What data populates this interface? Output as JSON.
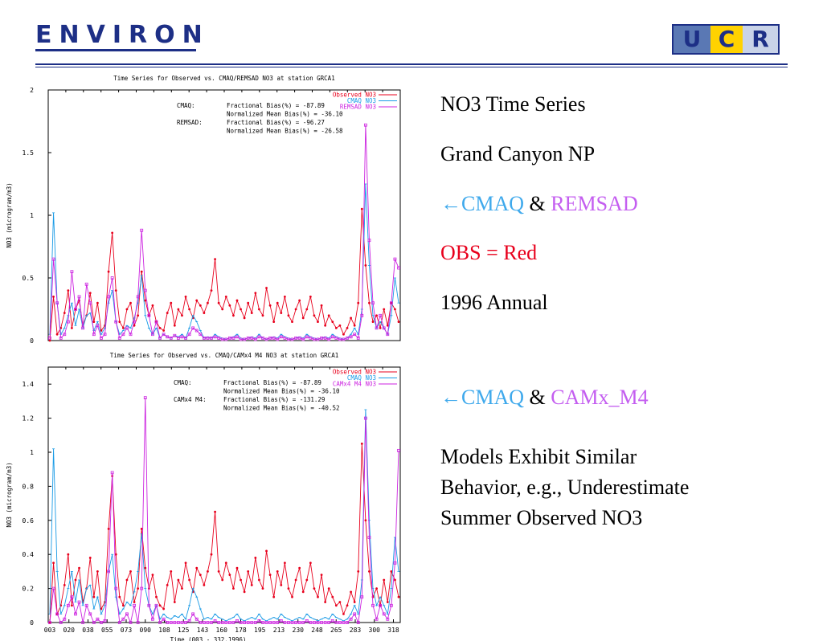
{
  "header": {
    "left_logo": "ENVIRON",
    "right_logo": [
      "U",
      "C",
      "R"
    ]
  },
  "bullets": {
    "line1": "NO3 Time Series",
    "line2": "Grand Canyon NP",
    "line3_arrow": "←",
    "line3_a": "CMAQ",
    "line3_amp": " & ",
    "line3_b": "REMSAD",
    "line4": "OBS = Red",
    "line5": "1996 Annual",
    "line6_arrow": "←",
    "line6_a": "CMAQ",
    "line6_amp": " & ",
    "line6_b": "CAMx_M4",
    "paragraph": [
      "Models Exhibit Similar",
      "Behavior, e.g., Underestimate",
      "Summer Observed NO3"
    ]
  },
  "colors": {
    "obs": "#e8001c",
    "cmaq": "#1a9be6",
    "model2": "#cc22e0",
    "text_cyan": "#3fa9ec",
    "text_magenta": "#c45ef0"
  },
  "chart_data": [
    {
      "type": "line",
      "title": "Time Series for Observed vs. CMAQ/REMSAD NO3 at station GRCA1",
      "ylabel": "NO3  (microgram/m3)",
      "ylim": [
        0,
        2.0
      ],
      "yticks": [
        "0",
        "0.5",
        "1",
        "1.5",
        "2"
      ],
      "legend": [
        "Observed NO3",
        "CMAQ NO3",
        "REMSAD NO3"
      ],
      "stats": [
        [
          "CMAQ:",
          "Fractional Bias(%) = -87.89"
        ],
        [
          "",
          "Normalized Mean Bias(%) = -36.10"
        ],
        [
          "REMSAD:",
          "Fractional Bias(%) = -96.27"
        ],
        [
          "",
          "Normalized Mean Bias(%) = -26.58"
        ]
      ],
      "series": [
        {
          "name": "Observed NO3",
          "values": [
            0.0,
            0.35,
            0.05,
            0.1,
            0.22,
            0.4,
            0.1,
            0.25,
            0.32,
            0.12,
            0.2,
            0.38,
            0.15,
            0.3,
            0.08,
            0.12,
            0.55,
            0.86,
            0.4,
            0.15,
            0.1,
            0.25,
            0.3,
            0.12,
            0.2,
            0.55,
            0.32,
            0.2,
            0.28,
            0.15,
            0.1,
            0.08,
            0.22,
            0.3,
            0.12,
            0.25,
            0.2,
            0.35,
            0.25,
            0.18,
            0.32,
            0.28,
            0.22,
            0.3,
            0.4,
            0.65,
            0.3,
            0.25,
            0.35,
            0.28,
            0.2,
            0.32,
            0.25,
            0.18,
            0.3,
            0.22,
            0.38,
            0.25,
            0.2,
            0.42,
            0.28,
            0.15,
            0.3,
            0.22,
            0.35,
            0.2,
            0.15,
            0.25,
            0.32,
            0.18,
            0.25,
            0.35,
            0.2,
            0.15,
            0.28,
            0.12,
            0.2,
            0.15,
            0.1,
            0.12,
            0.05,
            0.1,
            0.18,
            0.12,
            0.3,
            1.05,
            0.6,
            0.3,
            0.15,
            0.2,
            0.1,
            0.25,
            0.12,
            0.3,
            0.25,
            0.15
          ]
        },
        {
          "name": "CMAQ NO3",
          "values": [
            0.05,
            1.02,
            0.3,
            0.05,
            0.1,
            0.2,
            0.3,
            0.12,
            0.25,
            0.1,
            0.2,
            0.22,
            0.08,
            0.15,
            0.05,
            0.1,
            0.3,
            0.4,
            0.15,
            0.05,
            0.08,
            0.12,
            0.1,
            0.18,
            0.3,
            0.52,
            0.2,
            0.1,
            0.05,
            0.1,
            0.02,
            0.05,
            0.03,
            0.02,
            0.04,
            0.03,
            0.05,
            0.02,
            0.1,
            0.2,
            0.15,
            0.08,
            0.02,
            0.03,
            0.02,
            0.05,
            0.03,
            0.02,
            0.01,
            0.02,
            0.03,
            0.05,
            0.02,
            0.01,
            0.02,
            0.03,
            0.02,
            0.05,
            0.02,
            0.01,
            0.02,
            0.03,
            0.02,
            0.05,
            0.03,
            0.02,
            0.01,
            0.02,
            0.03,
            0.02,
            0.05,
            0.03,
            0.02,
            0.01,
            0.02,
            0.03,
            0.02,
            0.05,
            0.03,
            0.02,
            0.01,
            0.02,
            0.05,
            0.1,
            0.05,
            0.25,
            1.25,
            0.6,
            0.2,
            0.1,
            0.15,
            0.1,
            0.05,
            0.2,
            0.5,
            0.3
          ]
        },
        {
          "name": "REMSAD NO3",
          "values": [
            0.02,
            0.65,
            0.3,
            0.02,
            0.05,
            0.15,
            0.55,
            0.25,
            0.35,
            0.1,
            0.45,
            0.3,
            0.05,
            0.12,
            0.02,
            0.05,
            0.35,
            0.5,
            0.15,
            0.02,
            0.05,
            0.1,
            0.05,
            0.15,
            0.35,
            0.88,
            0.4,
            0.2,
            0.05,
            0.15,
            0.02,
            0.05,
            0.03,
            0.02,
            0.04,
            0.02,
            0.03,
            0.02,
            0.05,
            0.1,
            0.08,
            0.05,
            0.02,
            0.02,
            0.02,
            0.03,
            0.02,
            0.01,
            0.01,
            0.02,
            0.02,
            0.03,
            0.01,
            0.01,
            0.02,
            0.02,
            0.01,
            0.03,
            0.02,
            0.01,
            0.02,
            0.02,
            0.01,
            0.03,
            0.02,
            0.01,
            0.01,
            0.02,
            0.02,
            0.01,
            0.03,
            0.02,
            0.01,
            0.01,
            0.02,
            0.02,
            0.01,
            0.03,
            0.02,
            0.01,
            0.01,
            0.02,
            0.03,
            0.05,
            0.02,
            0.2,
            1.72,
            0.8,
            0.3,
            0.1,
            0.2,
            0.1,
            0.05,
            0.3,
            0.65,
            0.58
          ]
        }
      ]
    },
    {
      "type": "line",
      "title": "Time Series for Observed vs. CMAQ/CAMx4 M4 NO3 at station GRCA1",
      "ylabel": "NO3  (microgram/m3)",
      "xlabel": "Time    (003 - 332,1996)",
      "ylim": [
        0,
        1.5
      ],
      "yticks": [
        "0",
        "0.2",
        "0.4",
        "0.6",
        "0.8",
        "1",
        "1.2",
        "1.4"
      ],
      "xticks": [
        "003",
        "020",
        "038",
        "055",
        "073",
        "090",
        "108",
        "125",
        "143",
        "160",
        "178",
        "195",
        "213",
        "230",
        "248",
        "265",
        "283",
        "300",
        "318"
      ],
      "legend": [
        "Observed NO3",
        "CMAQ NO3",
        "CAMx4 M4 NO3"
      ],
      "stats": [
        [
          "CMAQ:",
          "Fractional Bias(%) = -87.89"
        ],
        [
          "",
          "Normalized Mean Bias(%) = -36.10"
        ],
        [
          "CAMx4 M4:",
          "Fractional Bias(%) = -131.29"
        ],
        [
          "",
          "Normalized Mean Bias(%) = -40.52"
        ]
      ],
      "series": [
        {
          "name": "Observed NO3",
          "values": [
            0.0,
            0.35,
            0.05,
            0.1,
            0.22,
            0.4,
            0.1,
            0.25,
            0.32,
            0.12,
            0.2,
            0.38,
            0.15,
            0.3,
            0.08,
            0.12,
            0.55,
            0.86,
            0.4,
            0.15,
            0.1,
            0.25,
            0.3,
            0.12,
            0.2,
            0.55,
            0.32,
            0.2,
            0.28,
            0.15,
            0.1,
            0.08,
            0.22,
            0.3,
            0.12,
            0.25,
            0.2,
            0.35,
            0.25,
            0.18,
            0.32,
            0.28,
            0.22,
            0.3,
            0.4,
            0.65,
            0.3,
            0.25,
            0.35,
            0.28,
            0.2,
            0.32,
            0.25,
            0.18,
            0.3,
            0.22,
            0.38,
            0.25,
            0.2,
            0.42,
            0.28,
            0.15,
            0.3,
            0.22,
            0.35,
            0.2,
            0.15,
            0.25,
            0.32,
            0.18,
            0.25,
            0.35,
            0.2,
            0.15,
            0.28,
            0.12,
            0.2,
            0.15,
            0.1,
            0.12,
            0.05,
            0.1,
            0.18,
            0.12,
            0.3,
            1.05,
            0.6,
            0.3,
            0.15,
            0.2,
            0.1,
            0.25,
            0.12,
            0.3,
            0.25,
            0.15
          ]
        },
        {
          "name": "CMAQ NO3",
          "values": [
            0.05,
            1.02,
            0.3,
            0.05,
            0.1,
            0.2,
            0.3,
            0.12,
            0.25,
            0.1,
            0.2,
            0.22,
            0.08,
            0.15,
            0.05,
            0.1,
            0.3,
            0.4,
            0.15,
            0.05,
            0.08,
            0.12,
            0.1,
            0.18,
            0.3,
            0.52,
            0.2,
            0.1,
            0.05,
            0.1,
            0.02,
            0.05,
            0.03,
            0.02,
            0.04,
            0.03,
            0.05,
            0.02,
            0.1,
            0.2,
            0.15,
            0.08,
            0.02,
            0.03,
            0.02,
            0.05,
            0.03,
            0.02,
            0.01,
            0.02,
            0.03,
            0.05,
            0.02,
            0.01,
            0.02,
            0.03,
            0.02,
            0.05,
            0.02,
            0.01,
            0.02,
            0.03,
            0.02,
            0.05,
            0.03,
            0.02,
            0.01,
            0.02,
            0.03,
            0.02,
            0.05,
            0.03,
            0.02,
            0.01,
            0.02,
            0.03,
            0.02,
            0.05,
            0.03,
            0.02,
            0.01,
            0.02,
            0.05,
            0.1,
            0.05,
            0.25,
            1.25,
            0.6,
            0.2,
            0.1,
            0.15,
            0.1,
            0.05,
            0.2,
            0.5,
            0.3
          ]
        },
        {
          "name": "CAMx4 M4 NO3",
          "values": [
            0.0,
            0.2,
            0.05,
            0.0,
            0.02,
            0.1,
            0.15,
            0.05,
            0.12,
            0.0,
            0.1,
            0.05,
            0.0,
            0.02,
            0.0,
            0.01,
            0.3,
            0.88,
            0.2,
            0.0,
            0.02,
            0.05,
            0.0,
            0.1,
            0.0,
            0.2,
            1.32,
            0.1,
            0.02,
            0.1,
            0.0,
            0.02,
            0.0,
            0.0,
            0.0,
            0.0,
            0.0,
            0.0,
            0.01,
            0.05,
            0.02,
            0.0,
            0.0,
            0.0,
            0.0,
            0.01,
            0.0,
            0.0,
            0.0,
            0.0,
            0.0,
            0.01,
            0.0,
            0.0,
            0.0,
            0.0,
            0.0,
            0.01,
            0.0,
            0.0,
            0.0,
            0.0,
            0.0,
            0.01,
            0.0,
            0.0,
            0.0,
            0.0,
            0.0,
            0.0,
            0.01,
            0.0,
            0.0,
            0.0,
            0.0,
            0.0,
            0.0,
            0.01,
            0.0,
            0.0,
            0.0,
            0.0,
            0.02,
            0.05,
            0.0,
            0.15,
            1.2,
            0.5,
            0.1,
            0.02,
            0.1,
            0.05,
            0.02,
            0.1,
            0.35,
            1.01
          ]
        }
      ]
    }
  ]
}
